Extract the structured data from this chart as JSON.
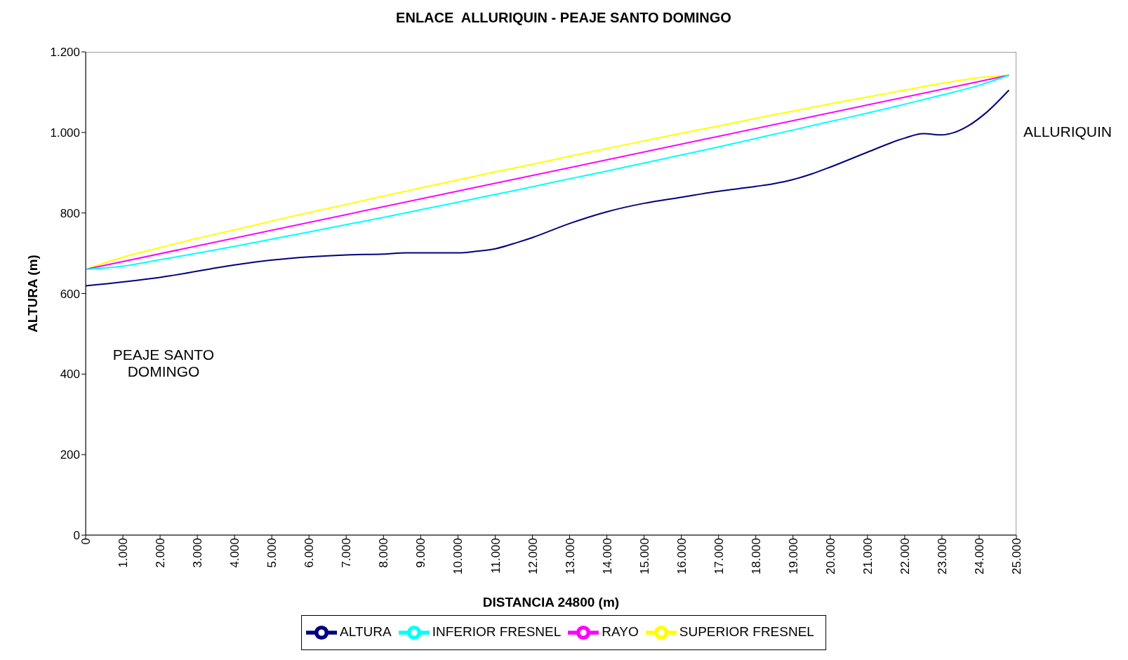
{
  "chart_data": {
    "type": "line",
    "title": "ENLACE  ALLURIQUIN - PEAJE SANTO DOMINGO",
    "xlabel": "DISTANCIA 24800 (m)",
    "ylabel": "ALTURA (m)",
    "annotations": [
      "PEAJE SANTO DOMINGO",
      "ALLURIQUIN"
    ],
    "series": [
      {
        "name": "SUPERIOR FRESNEL",
        "color": "#ffff00",
        "x": [
          0,
          1000,
          2000,
          3000,
          4000,
          5000,
          6000,
          7000,
          8000,
          9000,
          10000,
          11000,
          12000,
          13000,
          14000,
          15000,
          16000,
          17000,
          18000,
          19000,
          20000,
          21000,
          22000,
          23000,
          24000,
          24800
        ],
        "values": [
          660,
          690,
          714,
          737,
          758,
          780,
          801,
          821,
          842,
          862,
          882,
          902,
          921,
          941,
          960,
          979,
          998,
          1016,
          1035,
          1053,
          1071,
          1088,
          1105,
          1122,
          1136,
          1142
        ]
      },
      {
        "name": "RAYO",
        "color": "#ff00ff",
        "x": [
          0,
          24800
        ],
        "values": [
          660,
          1142
        ]
      },
      {
        "name": "INFERIOR FRESNEL",
        "color": "#00ffff",
        "x": [
          0,
          1000,
          2000,
          3000,
          4000,
          5000,
          6000,
          7000,
          8000,
          9000,
          10000,
          11000,
          12000,
          13000,
          14000,
          15000,
          16000,
          17000,
          18000,
          19000,
          20000,
          21000,
          22000,
          23000,
          24000,
          24800
        ],
        "values": [
          660,
          668,
          684,
          700,
          717,
          735,
          753,
          771,
          789,
          808,
          827,
          846,
          865,
          885,
          904,
          924,
          944,
          964,
          985,
          1006,
          1027,
          1048,
          1070,
          1093,
          1117,
          1142
        ]
      },
      {
        "name": "ALTURA",
        "color": "#000080",
        "x": [
          0,
          2000,
          4000,
          5000,
          6000,
          7000,
          8000,
          8600,
          10000,
          10500,
          11000,
          11600,
          12000,
          13000,
          14000,
          15000,
          16000,
          17000,
          18000,
          18500,
          19000,
          19500,
          20000,
          21000,
          22000,
          22500,
          23000,
          23300,
          23700,
          24200,
          24800
        ],
        "values": [
          619,
          640,
          671,
          683,
          691,
          696,
          698,
          701,
          701,
          705,
          711,
          727,
          739,
          774,
          803,
          824,
          839,
          854,
          866,
          873,
          883,
          897,
          914,
          951,
          986,
          997,
          994,
          999,
          1016,
          1050,
          1105
        ]
      }
    ],
    "xlim": [
      0,
      25000
    ],
    "xticks": [
      {
        "value": 0,
        "label": "0"
      },
      {
        "value": 1000,
        "label": "1.000"
      },
      {
        "value": 2000,
        "label": "2.000"
      },
      {
        "value": 3000,
        "label": "3.000"
      },
      {
        "value": 4000,
        "label": "4.000"
      },
      {
        "value": 5000,
        "label": "5.000"
      },
      {
        "value": 6000,
        "label": "6.000"
      },
      {
        "value": 7000,
        "label": "7.000"
      },
      {
        "value": 8000,
        "label": "8.000"
      },
      {
        "value": 9000,
        "label": "9.000"
      },
      {
        "value": 10000,
        "label": "10.000"
      },
      {
        "value": 11000,
        "label": "11.000"
      },
      {
        "value": 12000,
        "label": "12.000"
      },
      {
        "value": 13000,
        "label": "13.000"
      },
      {
        "value": 14000,
        "label": "14.000"
      },
      {
        "value": 15000,
        "label": "15.000"
      },
      {
        "value": 16000,
        "label": "16.000"
      },
      {
        "value": 17000,
        "label": "17.000"
      },
      {
        "value": 18000,
        "label": "18.000"
      },
      {
        "value": 19000,
        "label": "19.000"
      },
      {
        "value": 20000,
        "label": "20.000"
      },
      {
        "value": 21000,
        "label": "21.000"
      },
      {
        "value": 22000,
        "label": "22.000"
      },
      {
        "value": 23000,
        "label": "23.000"
      },
      {
        "value": 24000,
        "label": "24.000"
      },
      {
        "value": 25000,
        "label": "25.000"
      }
    ],
    "ylim": [
      0,
      1200
    ],
    "yticks": [
      0,
      200,
      400,
      600,
      800,
      {
        "value": 1000,
        "label": "1.000"
      },
      {
        "value": 1200,
        "label": "1.200"
      }
    ],
    "grid": false,
    "legend": "bottom",
    "marker": "none",
    "line_style": "solid"
  }
}
